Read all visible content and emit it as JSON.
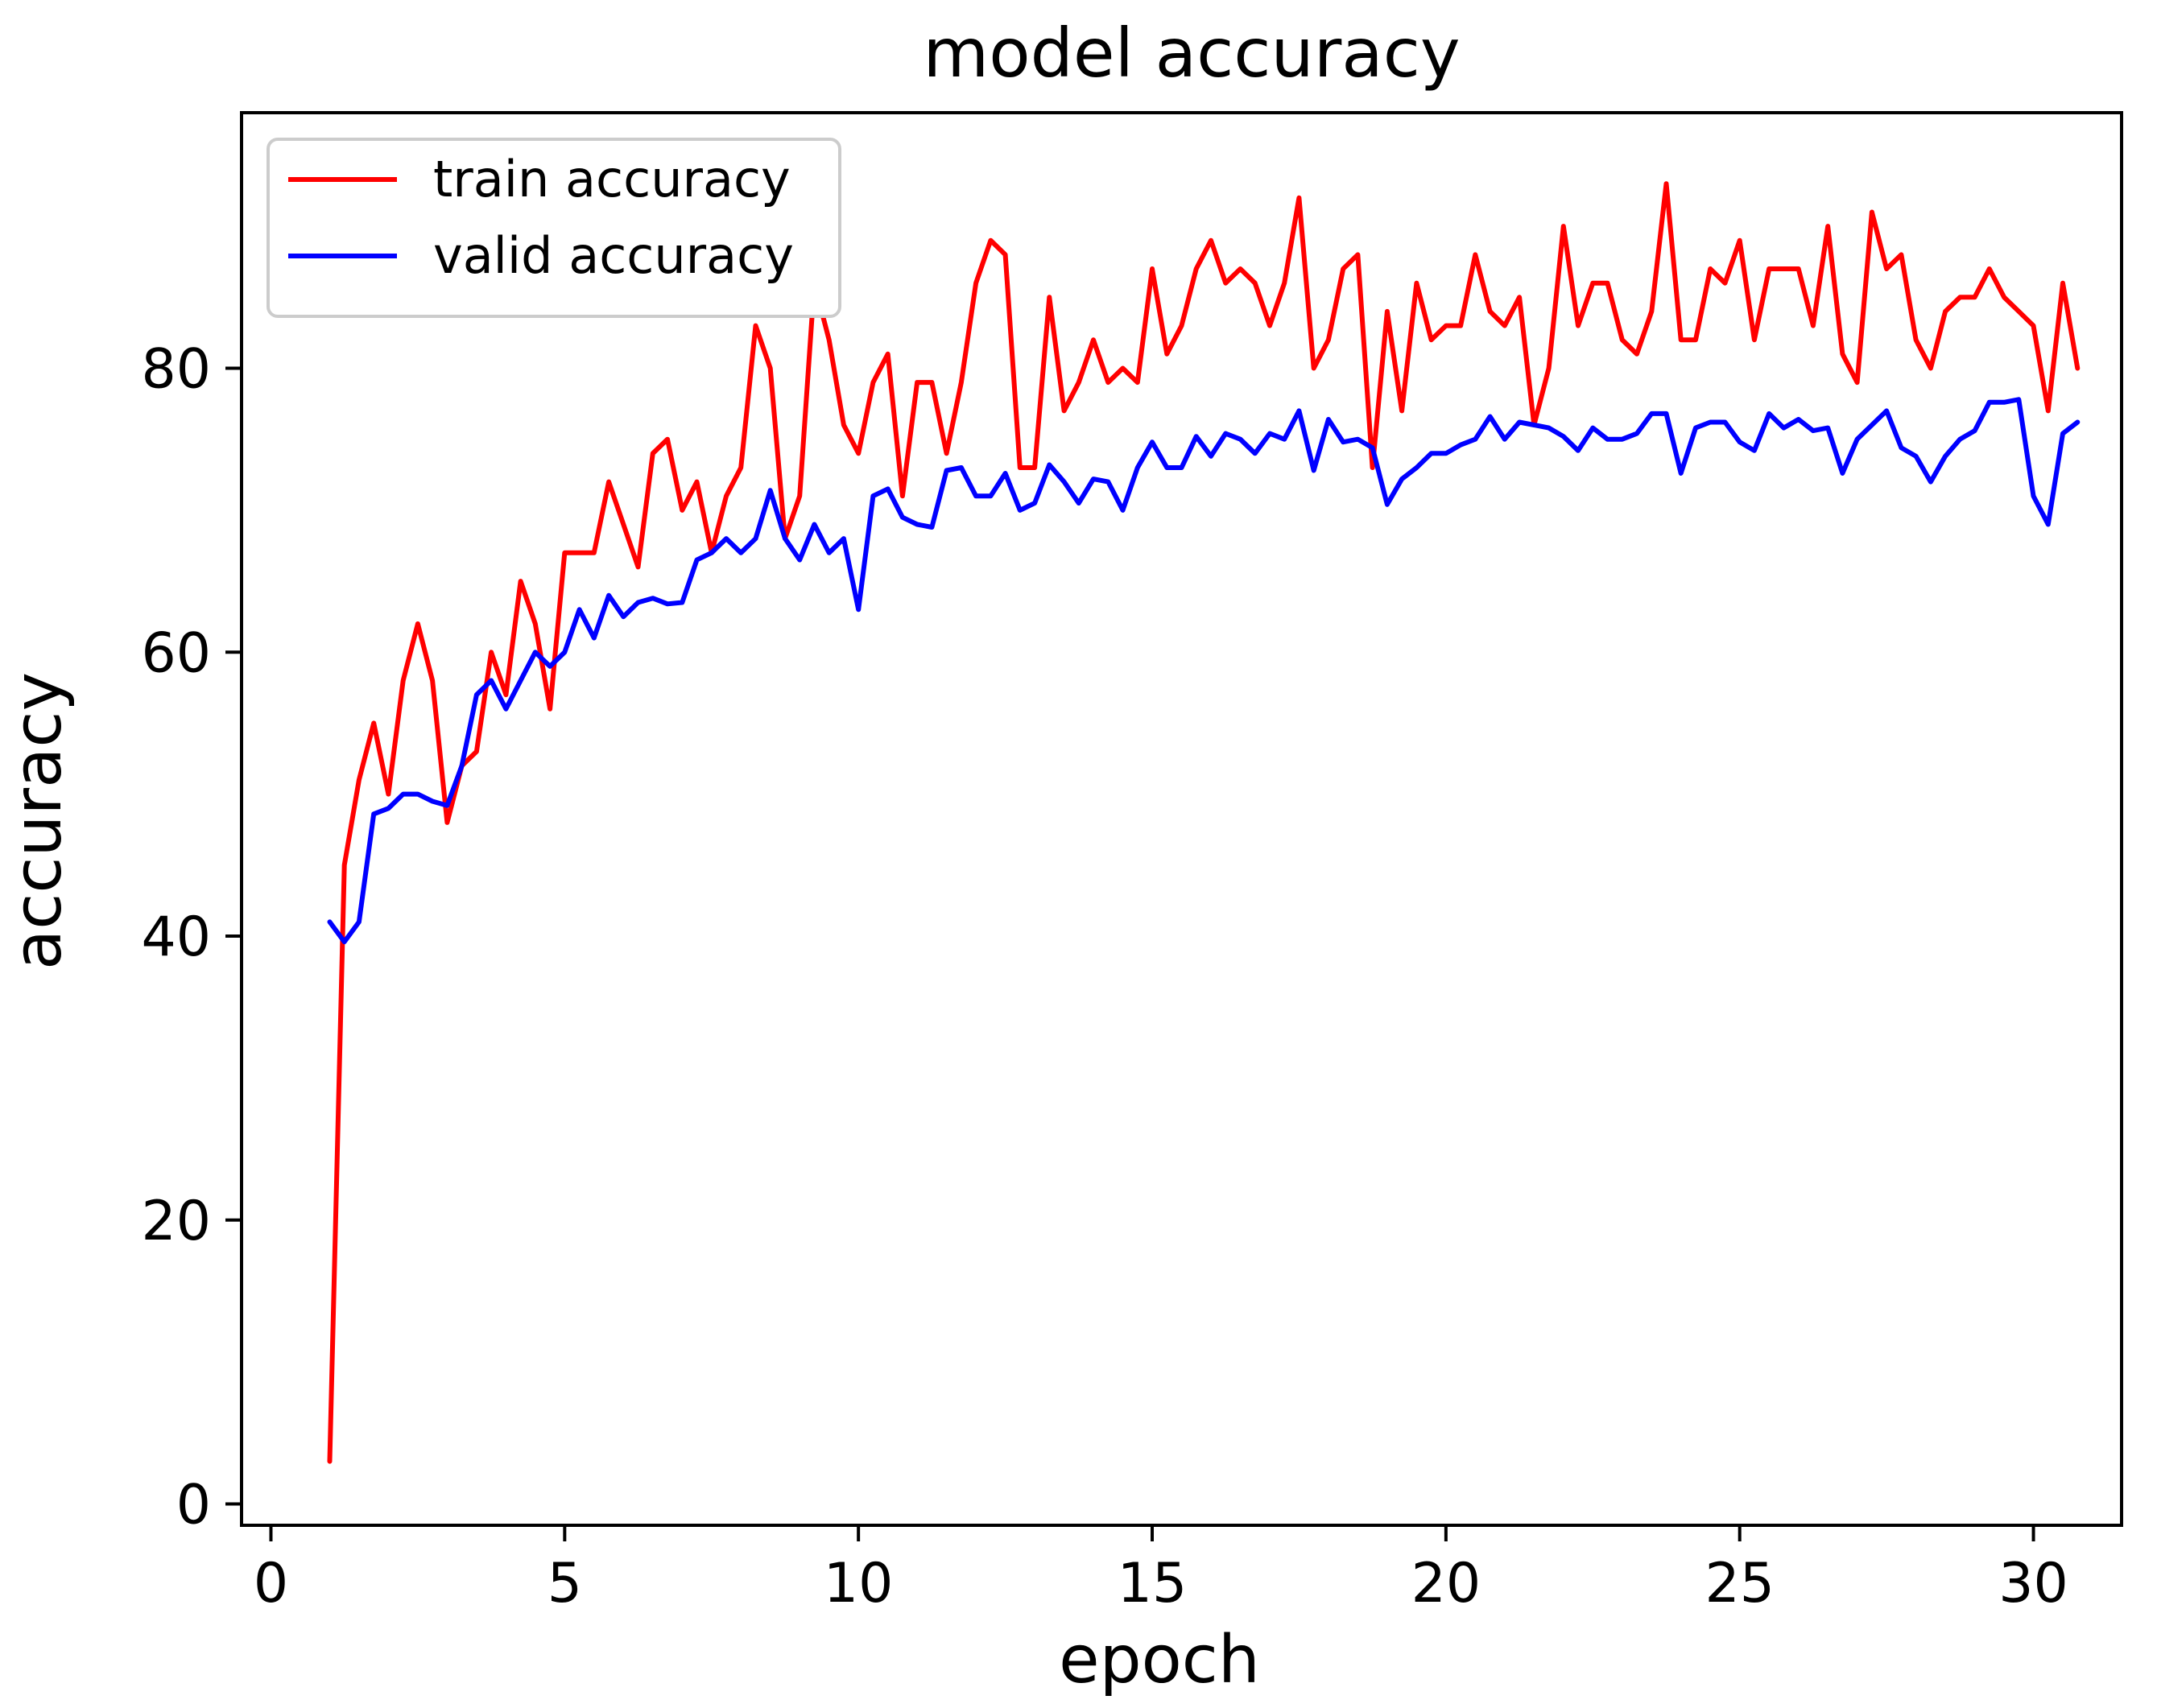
{
  "chart_data": {
    "type": "line",
    "title": "model accuracy",
    "xlabel": "epoch",
    "ylabel": "accuracy",
    "xlim": [
      -0.5,
      31.5
    ],
    "ylim": [
      -1.5,
      98
    ],
    "xticks": [
      0,
      5,
      10,
      15,
      20,
      25,
      30
    ],
    "yticks": [
      0,
      20,
      40,
      60,
      80
    ],
    "grid": false,
    "legend_position": "upper-left",
    "series": [
      {
        "name": "train accuracy",
        "color": "#ff0000",
        "x": [
          1.0,
          1.25,
          1.5,
          1.75,
          2.0,
          2.25,
          2.5,
          2.75,
          3.0,
          3.25,
          3.5,
          3.75,
          4.0,
          4.25,
          4.5,
          4.75,
          5.0,
          5.25,
          5.5,
          5.75,
          6.0,
          6.25,
          6.5,
          6.75,
          7.0,
          7.25,
          7.5,
          7.75,
          8.0,
          8.25,
          8.5,
          8.75,
          9.0,
          9.25,
          9.5,
          9.75,
          10.0,
          10.25,
          10.5,
          10.75,
          11.0,
          11.25,
          11.5,
          11.75,
          12.0,
          12.25,
          12.5,
          12.75,
          13.0,
          13.25,
          13.5,
          13.75,
          14.0,
          14.25,
          14.5,
          14.75,
          15.0,
          15.25,
          15.5,
          15.75,
          16.0,
          16.25,
          16.5,
          16.75,
          17.0,
          17.25,
          17.5,
          17.75,
          18.0,
          18.25,
          18.5,
          18.75,
          19.0,
          19.25,
          19.5,
          19.75,
          20.0,
          20.25,
          20.5,
          20.75,
          21.0,
          21.25,
          21.5,
          21.75,
          22.0,
          22.25,
          22.5,
          22.75,
          23.0,
          23.25,
          23.5,
          23.75,
          24.0,
          24.25,
          24.5,
          24.75,
          25.0,
          25.25,
          25.5,
          25.75,
          26.0,
          26.25,
          26.5,
          26.75,
          27.0,
          27.25,
          27.5,
          27.75,
          28.0,
          28.25,
          28.5,
          28.75,
          29.0,
          29.25,
          29.5,
          29.75,
          30.0,
          30.25,
          30.5,
          30.75
        ],
        "y": [
          3,
          45,
          51,
          55,
          50,
          58,
          62,
          58,
          48,
          52,
          53,
          60,
          57,
          65,
          62,
          56,
          67,
          67,
          67,
          72,
          69,
          66,
          74,
          75,
          70,
          72,
          67,
          71,
          73,
          83,
          80,
          68,
          71,
          86,
          82,
          76,
          74,
          79,
          81,
          71,
          79,
          79,
          74,
          79,
          86,
          89,
          88,
          73,
          73,
          85,
          77,
          79,
          82,
          79,
          80,
          79,
          87,
          81,
          83,
          87,
          89,
          86,
          87,
          86,
          83,
          86,
          92,
          80,
          82,
          87,
          88,
          73,
          84,
          77,
          86,
          82,
          83,
          83,
          88,
          84,
          83,
          85,
          76,
          80,
          90,
          83,
          86,
          86,
          82,
          81,
          84,
          93,
          82,
          82,
          87,
          86,
          89,
          82,
          87,
          87,
          87,
          83,
          90,
          81,
          79,
          91,
          87,
          88,
          82,
          80,
          84,
          85,
          85,
          87,
          85,
          84,
          83,
          77,
          86,
          80
        ]
      },
      {
        "name": "valid accuracy",
        "color": "#0000ff",
        "x": [
          1.0,
          1.25,
          1.5,
          1.75,
          2.0,
          2.25,
          2.5,
          2.75,
          3.0,
          3.25,
          3.5,
          3.75,
          4.0,
          4.25,
          4.5,
          4.75,
          5.0,
          5.25,
          5.5,
          5.75,
          6.0,
          6.25,
          6.5,
          6.75,
          7.0,
          7.25,
          7.5,
          7.75,
          8.0,
          8.25,
          8.5,
          8.75,
          9.0,
          9.25,
          9.5,
          9.75,
          10.0,
          10.25,
          10.5,
          10.75,
          11.0,
          11.25,
          11.5,
          11.75,
          12.0,
          12.25,
          12.5,
          12.75,
          13.0,
          13.25,
          13.5,
          13.75,
          14.0,
          14.25,
          14.5,
          14.75,
          15.0,
          15.25,
          15.5,
          15.75,
          16.0,
          16.25,
          16.5,
          16.75,
          17.0,
          17.25,
          17.5,
          17.75,
          18.0,
          18.25,
          18.5,
          18.75,
          19.0,
          19.25,
          19.5,
          19.75,
          20.0,
          20.25,
          20.5,
          20.75,
          21.0,
          21.25,
          21.5,
          21.75,
          22.0,
          22.25,
          22.5,
          22.75,
          23.0,
          23.25,
          23.5,
          23.75,
          24.0,
          24.25,
          24.5,
          24.75,
          25.0,
          25.25,
          25.5,
          25.75,
          26.0,
          26.25,
          26.5,
          26.75,
          27.0,
          27.25,
          27.5,
          27.75,
          28.0,
          28.25,
          28.5,
          28.75,
          29.0,
          29.25,
          29.5,
          29.75,
          30.0,
          30.25,
          30.5,
          30.75
        ],
        "y": [
          41,
          39.6,
          41,
          48.6,
          49,
          50,
          50,
          49.5,
          49.2,
          52,
          57,
          58,
          56,
          58,
          60,
          59,
          60,
          63,
          61,
          64,
          62.5,
          63.5,
          63.8,
          63.4,
          63.5,
          66.5,
          67,
          68,
          67,
          68,
          71.4,
          68,
          66.5,
          69,
          67,
          68,
          63,
          71,
          71.5,
          69.5,
          69,
          68.8,
          72.8,
          73,
          71,
          71,
          72.6,
          70,
          70.5,
          73.2,
          72,
          70.5,
          72.2,
          72,
          70,
          73,
          74.8,
          73,
          73,
          75.2,
          73.8,
          75.4,
          75,
          74,
          75.4,
          75,
          77,
          72.8,
          76.4,
          74.8,
          75,
          74.4,
          70.4,
          72.2,
          73,
          74,
          74,
          74.6,
          75,
          76.6,
          75,
          76.2,
          76,
          75.8,
          75.2,
          74.2,
          75.8,
          75,
          75,
          75.4,
          76.8,
          76.8,
          72.6,
          75.8,
          76.2,
          76.2,
          74.8,
          74.2,
          76.8,
          75.8,
          76.4,
          75.6,
          75.8,
          72.6,
          75,
          76,
          77,
          74.4,
          73.8,
          72,
          73.8,
          75,
          75.6,
          77.6,
          77.6,
          77.8,
          71,
          69,
          75.4,
          76.2
        ]
      }
    ]
  }
}
